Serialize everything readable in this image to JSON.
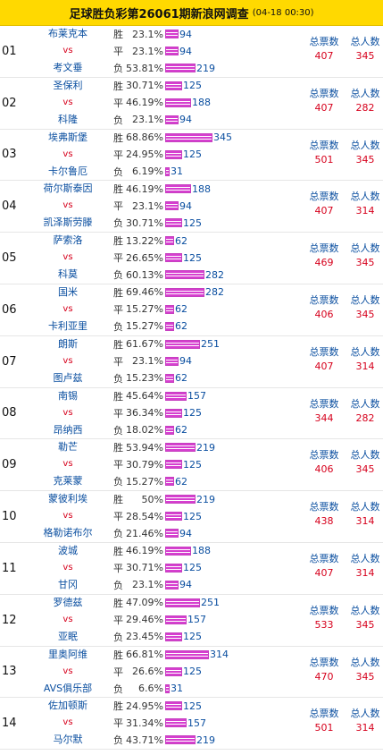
{
  "header": {
    "title": "足球胜负彩第26061期新浪网调查",
    "timestamp": "(04-18 00:30)"
  },
  "labels": {
    "vs": "vs",
    "win": "胜",
    "draw": "平",
    "loss": "负",
    "total_votes": "总票数",
    "total_people": "总人数"
  },
  "matches": [
    {
      "idx": "01",
      "home": "布莱克本",
      "away": "考文垂",
      "win_pct": "23.1%",
      "draw_pct": "23.1%",
      "loss_pct": "53.81%",
      "win": 94,
      "draw": 94,
      "loss": 219,
      "votes": 407,
      "people": 345
    },
    {
      "idx": "02",
      "home": "圣保利",
      "away": "科隆",
      "win_pct": "30.71%",
      "draw_pct": "46.19%",
      "loss_pct": "23.1%",
      "win": 125,
      "draw": 188,
      "loss": 94,
      "votes": 407,
      "people": 282
    },
    {
      "idx": "03",
      "home": "埃弗斯堡",
      "away": "卡尔鲁厄",
      "win_pct": "68.86%",
      "draw_pct": "24.95%",
      "loss_pct": "6.19%",
      "win": 345,
      "draw": 125,
      "loss": 31,
      "votes": 501,
      "people": 345
    },
    {
      "idx": "04",
      "home": "荷尔斯泰因",
      "away": "凯泽斯劳滕",
      "win_pct": "46.19%",
      "draw_pct": "23.1%",
      "loss_pct": "30.71%",
      "win": 188,
      "draw": 94,
      "loss": 125,
      "votes": 407,
      "people": 314
    },
    {
      "idx": "05",
      "home": "萨索洛",
      "away": "科莫",
      "win_pct": "13.22%",
      "draw_pct": "26.65%",
      "loss_pct": "60.13%",
      "win": 62,
      "draw": 125,
      "loss": 282,
      "votes": 469,
      "people": 345
    },
    {
      "idx": "06",
      "home": "国米",
      "away": "卡利亚里",
      "win_pct": "69.46%",
      "draw_pct": "15.27%",
      "loss_pct": "15.27%",
      "win": 282,
      "draw": 62,
      "loss": 62,
      "votes": 406,
      "people": 345
    },
    {
      "idx": "07",
      "home": "朗斯",
      "away": "图卢兹",
      "win_pct": "61.67%",
      "draw_pct": "23.1%",
      "loss_pct": "15.23%",
      "win": 251,
      "draw": 94,
      "loss": 62,
      "votes": 407,
      "people": 314
    },
    {
      "idx": "08",
      "home": "南锡",
      "away": "昂纳西",
      "win_pct": "45.64%",
      "draw_pct": "36.34%",
      "loss_pct": "18.02%",
      "win": 157,
      "draw": 125,
      "loss": 62,
      "votes": 344,
      "people": 282
    },
    {
      "idx": "09",
      "home": "勒芒",
      "away": "克莱蒙",
      "win_pct": "53.94%",
      "draw_pct": "30.79%",
      "loss_pct": "15.27%",
      "win": 219,
      "draw": 125,
      "loss": 62,
      "votes": 406,
      "people": 345
    },
    {
      "idx": "10",
      "home": "蒙彼利埃",
      "away": "格勒诺布尔",
      "win_pct": "50%",
      "draw_pct": "28.54%",
      "loss_pct": "21.46%",
      "win": 219,
      "draw": 125,
      "loss": 94,
      "votes": 438,
      "people": 314
    },
    {
      "idx": "11",
      "home": "波城",
      "away": "甘冈",
      "win_pct": "46.19%",
      "draw_pct": "30.71%",
      "loss_pct": "23.1%",
      "win": 188,
      "draw": 125,
      "loss": 94,
      "votes": 407,
      "people": 314
    },
    {
      "idx": "12",
      "home": "罗德兹",
      "away": "亚眠",
      "win_pct": "47.09%",
      "draw_pct": "29.46%",
      "loss_pct": "23.45%",
      "win": 251,
      "draw": 157,
      "loss": 125,
      "votes": 533,
      "people": 345
    },
    {
      "idx": "13",
      "home": "里奥阿维",
      "away": "AVS俱乐部",
      "win_pct": "66.81%",
      "draw_pct": "26.6%",
      "loss_pct": "6.6%",
      "win": 314,
      "draw": 125,
      "loss": 31,
      "votes": 470,
      "people": 345
    },
    {
      "idx": "14",
      "home": "佐加顿斯",
      "away": "马尔默",
      "win_pct": "24.95%",
      "draw_pct": "31.34%",
      "loss_pct": "43.71%",
      "win": 125,
      "draw": 157,
      "loss": 219,
      "votes": 501,
      "people": 314
    }
  ],
  "colors": {
    "header_bg": "#ffd900",
    "team": "#0b4fa0",
    "vs": "#d6001c",
    "bar": "#d63fcf"
  }
}
